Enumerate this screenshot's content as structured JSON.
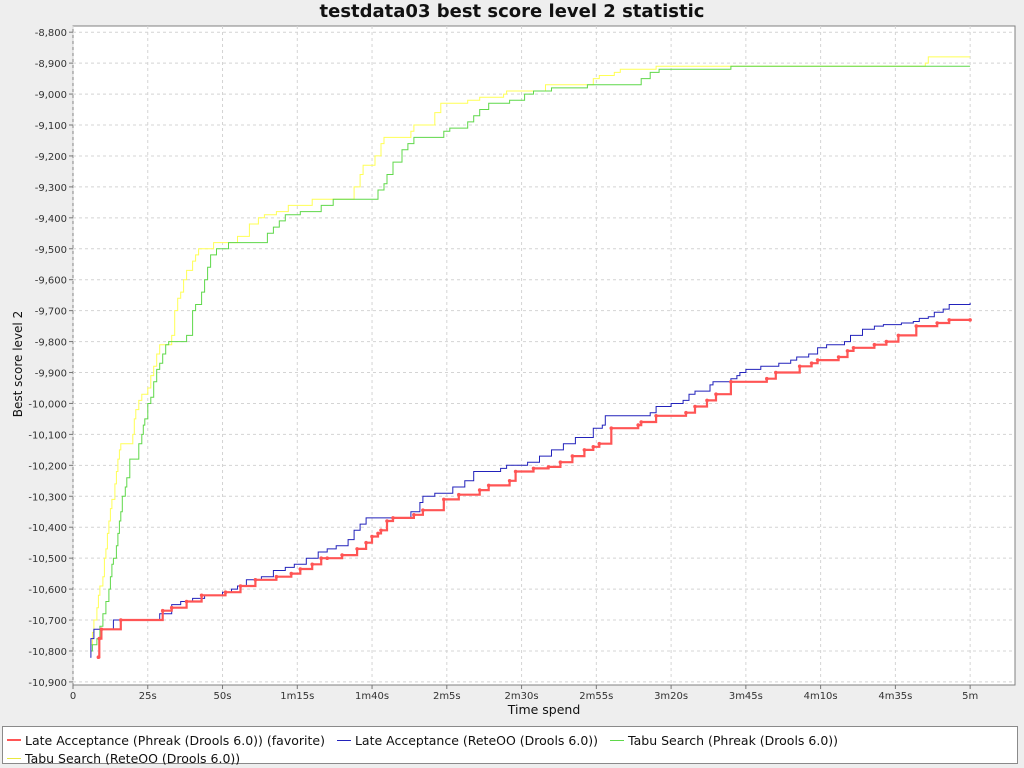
{
  "chart_data": {
    "type": "line",
    "title": "testdata03 best score level 2 statistic",
    "xlabel": "Time spend",
    "ylabel": "Best score level 2",
    "xlim": [
      0,
      315
    ],
    "ylim": [
      -10910,
      -8780
    ],
    "x_ticks": [
      {
        "v": 0,
        "label": "0"
      },
      {
        "v": 25,
        "label": "25s"
      },
      {
        "v": 50,
        "label": "50s"
      },
      {
        "v": 75,
        "label": "1m15s"
      },
      {
        "v": 100,
        "label": "1m40s"
      },
      {
        "v": 125,
        "label": "2m5s"
      },
      {
        "v": 150,
        "label": "2m30s"
      },
      {
        "v": 175,
        "label": "2m55s"
      },
      {
        "v": 200,
        "label": "3m20s"
      },
      {
        "v": 225,
        "label": "3m45s"
      },
      {
        "v": 250,
        "label": "4m10s"
      },
      {
        "v": 275,
        "label": "4m35s"
      },
      {
        "v": 300,
        "label": "5m"
      }
    ],
    "y_ticks": [
      {
        "v": -8800,
        "label": "-8,800"
      },
      {
        "v": -8900,
        "label": "-8,900"
      },
      {
        "v": -9000,
        "label": "-9,000"
      },
      {
        "v": -9100,
        "label": "-9,100"
      },
      {
        "v": -9200,
        "label": "-9,200"
      },
      {
        "v": -9300,
        "label": "-9,300"
      },
      {
        "v": -9400,
        "label": "-9,400"
      },
      {
        "v": -9500,
        "label": "-9,500"
      },
      {
        "v": -9600,
        "label": "-9,600"
      },
      {
        "v": -9700,
        "label": "-9,700"
      },
      {
        "v": -9800,
        "label": "-9,800"
      },
      {
        "v": -9900,
        "label": "-9,900"
      },
      {
        "v": -10000,
        "label": "-10,000"
      },
      {
        "v": -10100,
        "label": "-10,100"
      },
      {
        "v": -10200,
        "label": "-10,200"
      },
      {
        "v": -10300,
        "label": "-10,300"
      },
      {
        "v": -10400,
        "label": "-10,400"
      },
      {
        "v": -10500,
        "label": "-10,500"
      },
      {
        "v": -10600,
        "label": "-10,600"
      },
      {
        "v": -10700,
        "label": "-10,700"
      },
      {
        "v": -10800,
        "label": "-10,800"
      },
      {
        "v": -10900,
        "label": "-10,900"
      }
    ],
    "grid": true,
    "legend_position": "bottom",
    "series": [
      {
        "name": "Late Acceptance (Phreak (Drools 6.0)) (favorite)",
        "color": "#ff5555",
        "emphasis": true,
        "points": [
          [
            8.5,
            -10820
          ],
          [
            8.8,
            -10760
          ],
          [
            9.5,
            -10730
          ],
          [
            16,
            -10700
          ],
          [
            30,
            -10670
          ],
          [
            33,
            -10660
          ],
          [
            38,
            -10640
          ],
          [
            43,
            -10620
          ],
          [
            51,
            -10610
          ],
          [
            56,
            -10590
          ],
          [
            61,
            -10570
          ],
          [
            68,
            -10560
          ],
          [
            73,
            -10550
          ],
          [
            76,
            -10535
          ],
          [
            80,
            -10520
          ],
          [
            83,
            -10500
          ],
          [
            85,
            -10500
          ],
          [
            90,
            -10490
          ],
          [
            95,
            -10470
          ],
          [
            98,
            -10450
          ],
          [
            100,
            -10430
          ],
          [
            102,
            -10420
          ],
          [
            103,
            -10410
          ],
          [
            105,
            -10380
          ],
          [
            107,
            -10370
          ],
          [
            114,
            -10360
          ],
          [
            117,
            -10345
          ],
          [
            124,
            -10310
          ],
          [
            129,
            -10295
          ],
          [
            136,
            -10280
          ],
          [
            139,
            -10265
          ],
          [
            146,
            -10250
          ],
          [
            148,
            -10220
          ],
          [
            154,
            -10210
          ],
          [
            159,
            -10205
          ],
          [
            163,
            -10190
          ],
          [
            167,
            -10170
          ],
          [
            171,
            -10150
          ],
          [
            174,
            -10140
          ],
          [
            176,
            -10130
          ],
          [
            180,
            -10080
          ],
          [
            189,
            -10070
          ],
          [
            190,
            -10060
          ],
          [
            195,
            -10040
          ],
          [
            205,
            -10030
          ],
          [
            208,
            -10010
          ],
          [
            212,
            -9990
          ],
          [
            215,
            -9970
          ],
          [
            220,
            -9930
          ],
          [
            232,
            -9920
          ],
          [
            235,
            -9900
          ],
          [
            243,
            -9880
          ],
          [
            247,
            -9870
          ],
          [
            249,
            -9860
          ],
          [
            256,
            -9850
          ],
          [
            259,
            -9830
          ],
          [
            261,
            -9820
          ],
          [
            268,
            -9810
          ],
          [
            272,
            -9800
          ],
          [
            276,
            -9780
          ],
          [
            282,
            -9750
          ],
          [
            289,
            -9740
          ],
          [
            293,
            -9730
          ],
          [
            300,
            -9730
          ]
        ]
      },
      {
        "name": "Late Acceptance (ReteOO (Drools 6.0))",
        "color": "#2222bb",
        "emphasis": false,
        "points": [
          [
            5.8,
            -10820
          ],
          [
            6,
            -10760
          ],
          [
            7,
            -10730
          ],
          [
            13,
            -10730
          ],
          [
            13.5,
            -10700
          ],
          [
            29,
            -10680
          ],
          [
            33,
            -10650
          ],
          [
            36,
            -10640
          ],
          [
            40,
            -10630
          ],
          [
            44,
            -10620
          ],
          [
            50,
            -10610
          ],
          [
            53,
            -10600
          ],
          [
            55,
            -10590
          ],
          [
            58,
            -10570
          ],
          [
            63,
            -10560
          ],
          [
            67,
            -10540
          ],
          [
            71,
            -10530
          ],
          [
            74,
            -10520
          ],
          [
            78,
            -10500
          ],
          [
            82,
            -10480
          ],
          [
            85,
            -10470
          ],
          [
            88,
            -10460
          ],
          [
            92,
            -10440
          ],
          [
            94,
            -10410
          ],
          [
            96,
            -10390
          ],
          [
            98,
            -10370
          ],
          [
            101,
            -10370
          ],
          [
            113,
            -10350
          ],
          [
            116,
            -10320
          ],
          [
            117,
            -10300
          ],
          [
            121,
            -10290
          ],
          [
            127,
            -10270
          ],
          [
            131,
            -10250
          ],
          [
            134,
            -10220
          ],
          [
            143,
            -10210
          ],
          [
            145,
            -10200
          ],
          [
            152,
            -10190
          ],
          [
            156,
            -10170
          ],
          [
            160,
            -10150
          ],
          [
            164,
            -10130
          ],
          [
            168,
            -10110
          ],
          [
            174,
            -10080
          ],
          [
            177,
            -10070
          ],
          [
            178,
            -10040
          ],
          [
            193,
            -10030
          ],
          [
            195,
            -10010
          ],
          [
            200,
            -10000
          ],
          [
            204,
            -9990
          ],
          [
            206,
            -9970
          ],
          [
            208,
            -9960
          ],
          [
            213,
            -9940
          ],
          [
            214,
            -9930
          ],
          [
            220,
            -9920
          ],
          [
            222,
            -9910
          ],
          [
            223,
            -9900
          ],
          [
            225,
            -9890
          ],
          [
            230,
            -9880
          ],
          [
            236,
            -9870
          ],
          [
            240,
            -9860
          ],
          [
            242,
            -9850
          ],
          [
            246,
            -9840
          ],
          [
            249,
            -9820
          ],
          [
            252,
            -9810
          ],
          [
            258,
            -9800
          ],
          [
            260,
            -9780
          ],
          [
            264,
            -9760
          ],
          [
            268,
            -9750
          ],
          [
            271,
            -9745
          ],
          [
            277,
            -9740
          ],
          [
            281,
            -9735
          ],
          [
            283,
            -9725
          ],
          [
            286,
            -9720
          ],
          [
            288,
            -9705
          ],
          [
            291,
            -9695
          ],
          [
            293,
            -9680
          ],
          [
            300,
            -9675
          ]
        ]
      },
      {
        "name": "Tabu Search (Phreak (Drools 6.0))",
        "color": "#5fd84a",
        "emphasis": false,
        "points": [
          [
            6,
            -10800
          ],
          [
            6.5,
            -10780
          ],
          [
            8,
            -10760
          ],
          [
            9,
            -10720
          ],
          [
            10,
            -10680
          ],
          [
            11,
            -10640
          ],
          [
            12,
            -10600
          ],
          [
            12.5,
            -10560
          ],
          [
            13,
            -10520
          ],
          [
            13.5,
            -10500
          ],
          [
            14.5,
            -10460
          ],
          [
            15,
            -10420
          ],
          [
            15.5,
            -10380
          ],
          [
            16,
            -10350
          ],
          [
            16.5,
            -10300
          ],
          [
            17.5,
            -10270
          ],
          [
            18,
            -10240
          ],
          [
            19,
            -10180
          ],
          [
            22,
            -10130
          ],
          [
            23,
            -10100
          ],
          [
            23.5,
            -10070
          ],
          [
            24,
            -10050
          ],
          [
            25,
            -10000
          ],
          [
            26,
            -9980
          ],
          [
            27,
            -9930
          ],
          [
            28,
            -9890
          ],
          [
            29,
            -9870
          ],
          [
            30,
            -9840
          ],
          [
            31,
            -9810
          ],
          [
            32,
            -9800
          ],
          [
            33,
            -9800
          ],
          [
            38,
            -9780
          ],
          [
            40,
            -9700
          ],
          [
            41,
            -9680
          ],
          [
            43,
            -9640
          ],
          [
            44,
            -9600
          ],
          [
            45,
            -9560
          ],
          [
            46,
            -9520
          ],
          [
            48,
            -9500
          ],
          [
            52,
            -9480
          ],
          [
            65,
            -9450
          ],
          [
            67,
            -9430
          ],
          [
            69,
            -9410
          ],
          [
            71,
            -9390
          ],
          [
            76,
            -9380
          ],
          [
            83,
            -9360
          ],
          [
            87,
            -9340
          ],
          [
            102,
            -9310
          ],
          [
            104,
            -9290
          ],
          [
            105,
            -9260
          ],
          [
            107,
            -9220
          ],
          [
            110,
            -9180
          ],
          [
            112,
            -9160
          ],
          [
            114,
            -9140
          ],
          [
            124,
            -9120
          ],
          [
            126,
            -9110
          ],
          [
            132,
            -9090
          ],
          [
            134,
            -9070
          ],
          [
            136,
            -9050
          ],
          [
            139,
            -9030
          ],
          [
            146,
            -9020
          ],
          [
            151,
            -9000
          ],
          [
            154,
            -8990
          ],
          [
            160,
            -8980
          ],
          [
            172,
            -8970
          ],
          [
            190,
            -8950
          ],
          [
            193,
            -8930
          ],
          [
            196,
            -8920
          ],
          [
            220,
            -8910
          ],
          [
            300,
            -8910
          ]
        ]
      },
      {
        "name": "Tabu Search (ReteOO (Drools 6.0))",
        "color": "#ffff55",
        "emphasis": false,
        "points": [
          [
            6,
            -10780
          ],
          [
            6.5,
            -10740
          ],
          [
            7,
            -10700
          ],
          [
            8,
            -10660
          ],
          [
            8.5,
            -10620
          ],
          [
            9,
            -10590
          ],
          [
            10,
            -10560
          ],
          [
            10.5,
            -10500
          ],
          [
            11,
            -10470
          ],
          [
            11.5,
            -10420
          ],
          [
            12,
            -10380
          ],
          [
            12.5,
            -10340
          ],
          [
            13,
            -10310
          ],
          [
            14,
            -10260
          ],
          [
            14.5,
            -10220
          ],
          [
            15,
            -10180
          ],
          [
            15.5,
            -10150
          ],
          [
            16,
            -10130
          ],
          [
            20,
            -10100
          ],
          [
            20.5,
            -10050
          ],
          [
            21,
            -10020
          ],
          [
            22,
            -9990
          ],
          [
            23,
            -9970
          ],
          [
            25,
            -9950
          ],
          [
            26,
            -9910
          ],
          [
            27,
            -9880
          ],
          [
            28,
            -9840
          ],
          [
            29,
            -9810
          ],
          [
            33,
            -9780
          ],
          [
            34,
            -9700
          ],
          [
            35,
            -9660
          ],
          [
            36,
            -9640
          ],
          [
            37,
            -9600
          ],
          [
            38,
            -9570
          ],
          [
            40,
            -9540
          ],
          [
            41,
            -9520
          ],
          [
            42,
            -9500
          ],
          [
            47,
            -9480
          ],
          [
            55,
            -9460
          ],
          [
            59,
            -9420
          ],
          [
            62,
            -9400
          ],
          [
            64,
            -9390
          ],
          [
            68,
            -9380
          ],
          [
            72,
            -9360
          ],
          [
            80,
            -9340
          ],
          [
            94,
            -9300
          ],
          [
            96,
            -9260
          ],
          [
            97,
            -9230
          ],
          [
            101,
            -9200
          ],
          [
            103,
            -9160
          ],
          [
            104,
            -9140
          ],
          [
            113,
            -9120
          ],
          [
            114,
            -9100
          ],
          [
            121,
            -9060
          ],
          [
            123,
            -9030
          ],
          [
            132,
            -9020
          ],
          [
            136,
            -9010
          ],
          [
            144,
            -9000
          ],
          [
            145,
            -8990
          ],
          [
            158,
            -8970
          ],
          [
            174,
            -8950
          ],
          [
            176,
            -8940
          ],
          [
            181,
            -8930
          ],
          [
            183,
            -8920
          ],
          [
            195,
            -8910
          ],
          [
            285,
            -8900
          ],
          [
            286,
            -8880
          ],
          [
            300,
            -8880
          ]
        ]
      }
    ]
  }
}
